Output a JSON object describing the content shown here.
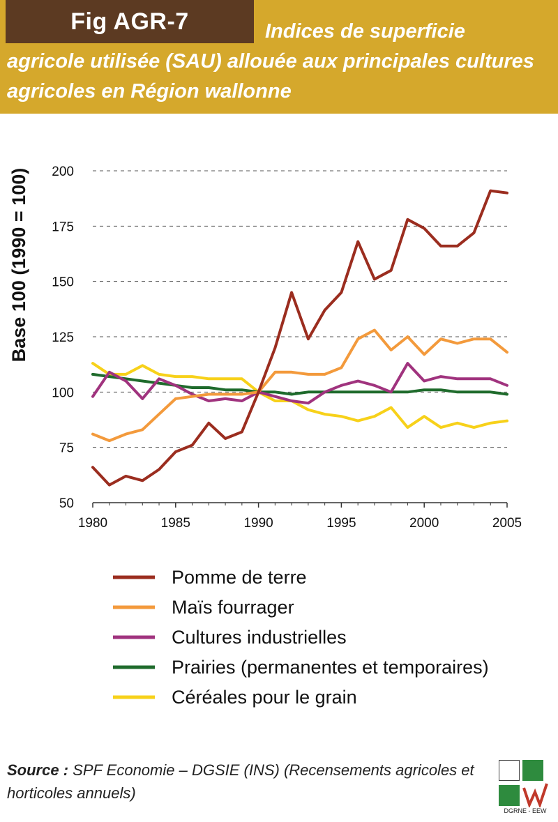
{
  "header": {
    "fig_label": "Fig AGR-7",
    "title": "Indices de superficie agricole utilisée (SAU) allouée aux principales cultures agricoles en Région wallonne"
  },
  "colors": {
    "header_bg": "#d5a82c",
    "tab_bg": "#5c3a22"
  },
  "chart_data": {
    "type": "line",
    "ylabel": "Base 100 (1990 = 100)",
    "xlabel": "",
    "ylim": [
      50,
      200
    ],
    "xlim": [
      1980,
      2005
    ],
    "x_ticks": [
      1980,
      1985,
      1990,
      1995,
      2000,
      2005
    ],
    "y_ticks": [
      50,
      75,
      100,
      125,
      150,
      175,
      200
    ],
    "grid": "horizontal dashed",
    "legend_position": "below",
    "x": [
      1980,
      1981,
      1982,
      1983,
      1984,
      1985,
      1986,
      1987,
      1988,
      1989,
      1990,
      1991,
      1992,
      1993,
      1994,
      1995,
      1996,
      1997,
      1998,
      1999,
      2000,
      2001,
      2002,
      2003,
      2004,
      2005
    ],
    "series": [
      {
        "name": "Pomme de terre",
        "color": "#9b2d1f",
        "values": [
          66,
          58,
          62,
          60,
          65,
          73,
          76,
          86,
          79,
          82,
          100,
          120,
          145,
          124,
          137,
          145,
          168,
          151,
          155,
          178,
          174,
          166,
          166,
          172,
          191,
          190
        ]
      },
      {
        "name": "Maïs fourrager",
        "color": "#f39a3c",
        "values": [
          81,
          78,
          81,
          83,
          90,
          97,
          98,
          99,
          99,
          99,
          100,
          109,
          109,
          108,
          108,
          111,
          124,
          128,
          119,
          125,
          117,
          124,
          122,
          124,
          124,
          118
        ]
      },
      {
        "name": "Cultures industrielles",
        "color": "#a0337e",
        "values": [
          98,
          109,
          105,
          97,
          106,
          103,
          99,
          96,
          97,
          96,
          100,
          98,
          96,
          95,
          100,
          103,
          105,
          103,
          100,
          113,
          105,
          107,
          106,
          106,
          106,
          103
        ]
      },
      {
        "name": "Prairies (permanentes et temporaires)",
        "color": "#1f6b2c",
        "values": [
          108,
          107,
          106,
          105,
          104,
          103,
          102,
          102,
          101,
          101,
          100,
          100,
          99,
          100,
          100,
          100,
          100,
          100,
          100,
          100,
          101,
          101,
          100,
          100,
          100,
          99
        ]
      },
      {
        "name": "Céréales pour le grain",
        "color": "#f7d11a",
        "values": [
          113,
          108,
          108,
          112,
          108,
          107,
          107,
          106,
          106,
          106,
          100,
          96,
          96,
          92,
          90,
          89,
          87,
          89,
          93,
          84,
          89,
          84,
          86,
          84,
          86,
          87
        ]
      }
    ]
  },
  "source": {
    "label": "Source :",
    "text": "SPF Economie – DGSIE (INS) (Recensements agricoles et horticoles annuels)"
  },
  "logo": {
    "text": "DGRNE - EEW"
  }
}
